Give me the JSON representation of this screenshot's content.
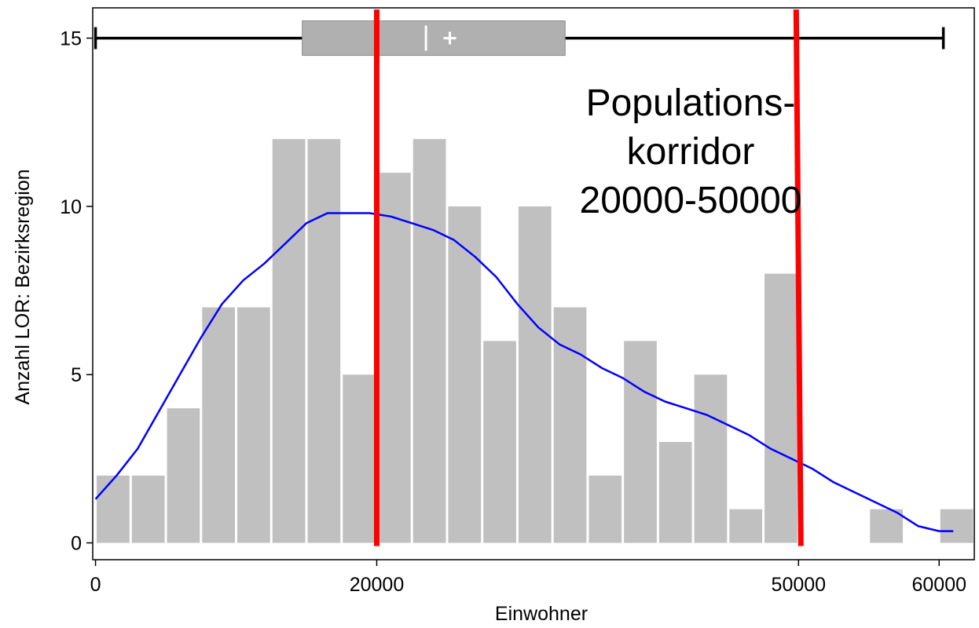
{
  "chart_data": {
    "type": "bar",
    "title": "",
    "xlabel": "Einwohner",
    "ylabel": "Anzahl LOR: Bezirksregion",
    "xlim": [
      -200,
      62500
    ],
    "ylim": [
      -0.5,
      15.9
    ],
    "x_ticks": [
      0,
      20000,
      50000,
      60000
    ],
    "x_tick_labels": [
      "0",
      "20000",
      "50000",
      "60000"
    ],
    "y_ticks": [
      0,
      5,
      10,
      15
    ],
    "y_tick_labels": [
      "0",
      "5",
      "10",
      "15"
    ],
    "grid": false,
    "legend": "none",
    "bin_width": 2500,
    "bins_start": [
      0,
      2500,
      5000,
      7500,
      10000,
      12500,
      15000,
      17500,
      20000,
      22500,
      25000,
      27500,
      30000,
      32500,
      35000,
      37500,
      40000,
      42500,
      45000,
      47500,
      50000,
      52500,
      55000,
      57500,
      60000
    ],
    "counts": [
      2,
      2,
      4,
      7,
      7,
      12,
      12,
      5,
      11,
      12,
      10,
      6,
      10,
      7,
      2,
      6,
      3,
      5,
      1,
      8,
      0,
      0,
      1,
      0,
      1
    ],
    "density_curve": {
      "x": [
        0,
        1500,
        3000,
        4500,
        6000,
        7500,
        9000,
        10500,
        12000,
        13500,
        15000,
        16500,
        18000,
        19500,
        21000,
        22500,
        24000,
        25500,
        27000,
        28500,
        30000,
        31500,
        33000,
        34500,
        36000,
        37500,
        39000,
        40500,
        42000,
        43500,
        45000,
        46500,
        48000,
        49500,
        51000,
        52500,
        54000,
        55500,
        57000,
        58500,
        60000,
        61000
      ],
      "y": [
        1.3,
        2.0,
        2.8,
        3.9,
        5.0,
        6.1,
        7.1,
        7.8,
        8.3,
        8.9,
        9.5,
        9.8,
        9.8,
        9.8,
        9.7,
        9.5,
        9.3,
        9.0,
        8.5,
        7.9,
        7.1,
        6.4,
        5.9,
        5.6,
        5.2,
        4.9,
        4.5,
        4.2,
        4.0,
        3.8,
        3.5,
        3.2,
        2.8,
        2.5,
        2.2,
        1.8,
        1.5,
        1.2,
        0.9,
        0.5,
        0.35,
        0.35
      ]
    },
    "boxplot": {
      "y": 15,
      "min": 0,
      "q1": 14700,
      "median": 23500,
      "mean": 25200,
      "q3": 33400,
      "max": 60300
    },
    "corridor": {
      "lower": 20000,
      "upper": 50000,
      "annotation": [
        "Populations-",
        "korridor",
        "20000-50000"
      ]
    },
    "colors": {
      "bars": "#c0c0c0",
      "bar_edge": "#ffffff",
      "curve": "#0000ff",
      "corridor_lines": "#ff0000",
      "box_fill": "#b0b0b0",
      "box_edge": "#8a8a8a",
      "whisker": "#000000",
      "box_markers": "#ffffff"
    }
  }
}
